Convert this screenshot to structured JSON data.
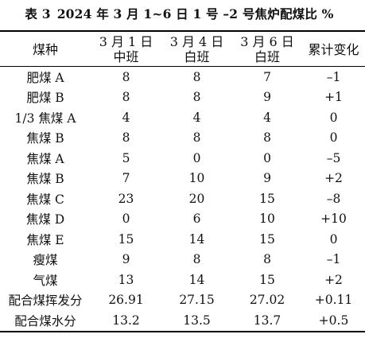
{
  "caption": {
    "label": "表 3",
    "title": "2024 年 3 月 1~6 日 1 号 –2 号焦炉配煤比 %"
  },
  "table": {
    "headers": [
      {
        "line1": "煤种",
        "line2": ""
      },
      {
        "line1": "3 月 1 日",
        "line2": "中班"
      },
      {
        "line1": "3 月 4 日",
        "line2": "白班"
      },
      {
        "line1": "3 月 6 日",
        "line2": "白班"
      },
      {
        "line1": "累计变化",
        "line2": ""
      }
    ],
    "rows": [
      [
        "肥煤 A",
        "8",
        "8",
        "7",
        "–1"
      ],
      [
        "肥煤 B",
        "8",
        "8",
        "9",
        "+1"
      ],
      [
        "1/3 焦煤 A",
        "4",
        "4",
        "4",
        "0"
      ],
      [
        "焦煤 B",
        "8",
        "8",
        "8",
        "0"
      ],
      [
        "焦煤 A",
        "5",
        "0",
        "0",
        "–5"
      ],
      [
        "焦煤 B",
        "7",
        "10",
        "9",
        "+2"
      ],
      [
        "焦煤 C",
        "23",
        "20",
        "15",
        "–8"
      ],
      [
        "焦煤 D",
        "0",
        "6",
        "10",
        "+10"
      ],
      [
        "焦煤 E",
        "15",
        "14",
        "15",
        "0"
      ],
      [
        "瘦煤",
        "9",
        "8",
        "8",
        "–1"
      ],
      [
        "气煤",
        "13",
        "14",
        "15",
        "+2"
      ],
      [
        "配合煤挥发分",
        "26.91",
        "27.15",
        "27.02",
        "+0.11"
      ],
      [
        "配合煤水分",
        "13.2",
        "13.5",
        "13.7",
        "+0.5"
      ]
    ]
  }
}
